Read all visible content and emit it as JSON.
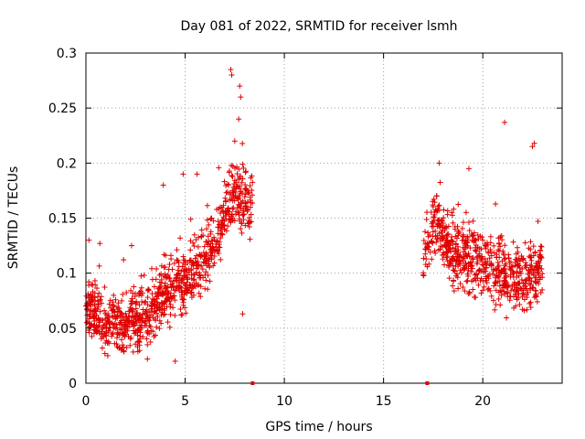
{
  "chart_data": {
    "type": "scatter",
    "title": "Day 081 of 2022, SRMTID for receiver lsmh",
    "xlabel": "GPS time / hours",
    "ylabel": "SRMTID / TECUs",
    "xlim": [
      0,
      24
    ],
    "ylim": [
      0,
      0.3
    ],
    "x_ticks": [
      0,
      5,
      10,
      15,
      20
    ],
    "y_ticks": [
      0,
      0.05,
      0.1,
      0.15,
      0.2,
      0.25,
      0.3
    ],
    "x_tick_labels": [
      "0",
      "5",
      "10",
      "15",
      "20"
    ],
    "y_tick_labels": [
      "0",
      "0.05",
      "0.1",
      "0.15",
      "0.2",
      "0.25",
      "0.3"
    ],
    "grid": true,
    "marker": "plus",
    "color": "#e00000",
    "series": [
      {
        "name": "SRMTID",
        "segments": [
          {
            "x_start": 0.0,
            "x_end": 8.4,
            "trend": [
              [
                0.0,
                0.07
              ],
              [
                1.0,
                0.055
              ],
              [
                2.0,
                0.055
              ],
              [
                3.0,
                0.06
              ],
              [
                4.0,
                0.08
              ],
              [
                5.0,
                0.09
              ],
              [
                6.0,
                0.11
              ],
              [
                6.8,
                0.14
              ],
              [
                7.4,
                0.17
              ],
              [
                8.2,
                0.16
              ]
            ],
            "spread": 0.035
          },
          {
            "x_start": 17.0,
            "x_end": 23.0,
            "trend": [
              [
                17.0,
                0.11
              ],
              [
                17.6,
                0.15
              ],
              [
                18.5,
                0.12
              ],
              [
                20.0,
                0.11
              ],
              [
                21.0,
                0.1
              ],
              [
                22.0,
                0.095
              ],
              [
                23.0,
                0.1
              ]
            ],
            "spread": 0.04
          }
        ],
        "points": [
          [
            7.3,
            0.285
          ],
          [
            7.35,
            0.28
          ],
          [
            7.75,
            0.27
          ],
          [
            7.8,
            0.26
          ],
          [
            7.7,
            0.24
          ],
          [
            7.5,
            0.22
          ],
          [
            21.1,
            0.237
          ],
          [
            22.6,
            0.218
          ],
          [
            22.5,
            0.215
          ],
          [
            17.8,
            0.2
          ],
          [
            19.3,
            0.195
          ],
          [
            5.6,
            0.19
          ],
          [
            4.9,
            0.19
          ],
          [
            3.9,
            0.18
          ],
          [
            0.15,
            0.13
          ],
          [
            0.7,
            0.127
          ],
          [
            2.3,
            0.125
          ],
          [
            4.5,
            0.02
          ],
          [
            3.1,
            0.022
          ],
          [
            1.1,
            0.025
          ],
          [
            7.9,
            0.063
          ]
        ]
      },
      {
        "name": "data-gap markers",
        "x": [
          8.4,
          17.2
        ],
        "y": [
          0,
          0
        ]
      }
    ]
  }
}
